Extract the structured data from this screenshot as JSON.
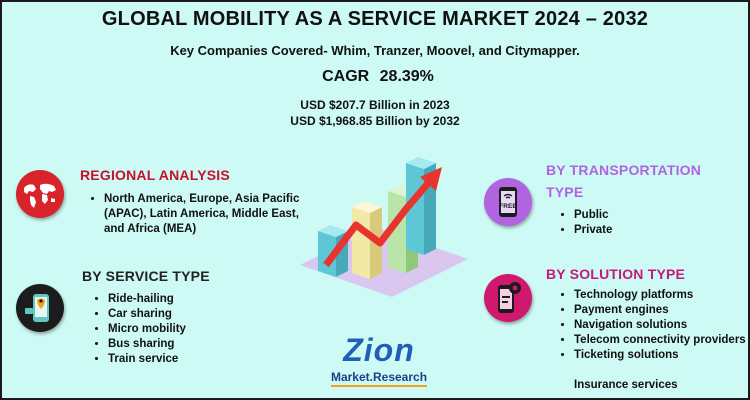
{
  "header": {
    "title": "GLOBAL MOBILITY AS A SERVICE MARKET 2024 – 2032",
    "subtitle": "Key Companies Covered- Whim, Tranzer, Moovel, and Citymapper.",
    "cagr_label": "CAGR",
    "cagr_value": "28.39%",
    "usd_2023": "USD $207.7 Billion in 2023",
    "usd_2032": "USD $1,968.85 Billion by 2032"
  },
  "regional": {
    "heading": "REGIONAL ANALYSIS",
    "items": [
      "North America, Europe, Asia Pacific (APAC), Latin America, Middle East, and Africa (MEA)"
    ],
    "icon": "world-map-icon",
    "color": "#c8102e"
  },
  "service": {
    "heading": "BY SERVICE TYPE",
    "items": [
      "Ride-hailing",
      "Car sharing",
      "Micro mobility",
      "Bus sharing",
      "Train service"
    ],
    "icon": "phone-map-icon",
    "color": "#222222"
  },
  "transportation": {
    "heading_line1": "BY TRANSPORTATION",
    "heading_line2": "TYPE",
    "items": [
      "Public",
      "Private"
    ],
    "icon": "free-phone-icon",
    "icon_text": "FREE",
    "color": "#b064e0"
  },
  "solution": {
    "heading": "BY SOLUTION TYPE",
    "items": [
      "Technology platforms",
      "Payment engines",
      "Navigation solutions",
      "Telecom connectivity providers",
      "Ticketing solutions",
      "Insurance services"
    ],
    "icon": "phone-gear-icon",
    "color": "#c8187a"
  },
  "logo": {
    "word": "Zion",
    "sub": "Market.Research"
  }
}
